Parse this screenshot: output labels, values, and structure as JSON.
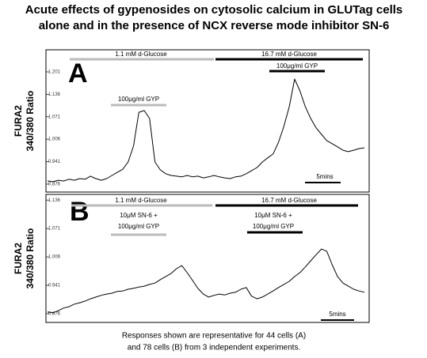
{
  "title": [
    "Acute effects of gypenosides on cytosolic calcium in GLUTag cells",
    "alone and in the presence of  NCX reverse mode inhibitor SN-6"
  ],
  "caption": [
    "Responses shown are representative for 44 cells (A)",
    "and 78 cells (B) from  3 independent experiments."
  ],
  "chart_data": [
    {
      "type": "line",
      "panel": "A",
      "ylabel": [
        "FURA2",
        "340/380 Ratio"
      ],
      "annotations": [
        "1.1 mM d-Glucose",
        "16.7 mM d-Glucose",
        "100μg/ml GYP",
        "100μg/ml GYP",
        "5mins"
      ],
      "ylim": [
        0.853,
        1.265
      ],
      "yticks": [
        0.876,
        0.941,
        1.006,
        1.071,
        1.136,
        1.201
      ],
      "series": [
        {
          "color": "#000000",
          "values": [
            0.885,
            0.883,
            0.887,
            0.885,
            0.89,
            0.887,
            0.892,
            0.89,
            0.899,
            0.892,
            0.887,
            0.892,
            0.901,
            0.91,
            0.919,
            0.94,
            0.986,
            1.084,
            1.089,
            1.066,
            0.94,
            0.917,
            0.906,
            0.901,
            0.899,
            0.897,
            0.901,
            0.897,
            0.899,
            0.894,
            0.897,
            0.901,
            0.897,
            0.894,
            0.892,
            0.897,
            0.899,
            0.906,
            0.915,
            0.924,
            0.94,
            0.952,
            0.963,
            0.997,
            1.043,
            1.1,
            1.18,
            1.146,
            1.1,
            1.066,
            1.039,
            1.02,
            1.002,
            0.993,
            0.984,
            0.974,
            0.97,
            0.974,
            0.979,
            0.981
          ]
        }
      ]
    },
    {
      "type": "line",
      "panel": "B",
      "ylabel": [
        "FURA2",
        "340/380 Ratio"
      ],
      "annotations": [
        "1.1 mM d-Glucose",
        "16.7 mM d-Glucose",
        "10μM SN-6 +",
        "100μg/ml GYP",
        "10μM SN-6 +",
        "100μg/ml GYP",
        "5mins"
      ],
      "ylim": [
        0.856,
        1.149
      ],
      "yticks": [
        0.876,
        0.941,
        1.006,
        1.071,
        1.136
      ],
      "series": [
        {
          "color": "#000000",
          "values": [
            0.88,
            0.878,
            0.883,
            0.889,
            0.892,
            0.898,
            0.901,
            0.905,
            0.91,
            0.914,
            0.918,
            0.921,
            0.923,
            0.927,
            0.928,
            0.932,
            0.934,
            0.937,
            0.939,
            0.943,
            0.946,
            0.954,
            0.961,
            0.968,
            0.979,
            0.986,
            0.97,
            0.952,
            0.934,
            0.921,
            0.914,
            0.918,
            0.921,
            0.919,
            0.923,
            0.925,
            0.932,
            0.936,
            0.916,
            0.91,
            0.914,
            0.921,
            0.928,
            0.936,
            0.943,
            0.95,
            0.961,
            0.97,
            0.983,
            0.997,
            1.011,
            1.024,
            1.019,
            0.988,
            0.961,
            0.946,
            0.939,
            0.932,
            0.928,
            0.925
          ]
        }
      ]
    }
  ]
}
